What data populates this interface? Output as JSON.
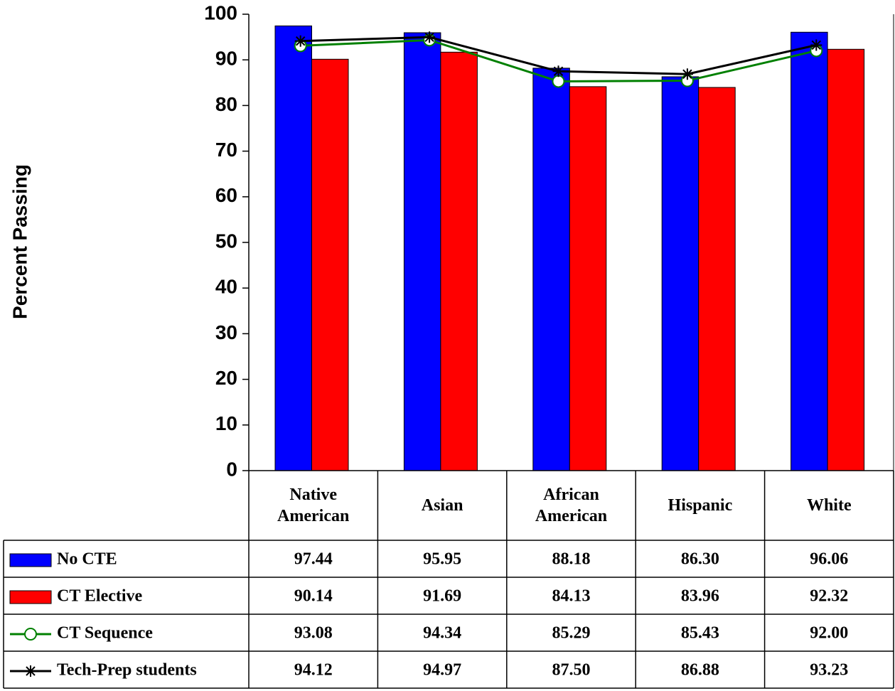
{
  "chart_data": {
    "type": "bar",
    "y_axis_label": "Percent Passing",
    "categories": [
      "Native American",
      "Asian",
      "African American",
      "Hispanic",
      "White"
    ],
    "ylim": [
      0,
      100
    ],
    "yticks": [
      0,
      10,
      20,
      30,
      40,
      50,
      60,
      70,
      80,
      90,
      100
    ],
    "grid": false,
    "series": [
      {
        "name": "No CTE",
        "type": "bar",
        "color": "#0000ff",
        "values": [
          97.44,
          95.95,
          88.18,
          86.3,
          96.06
        ],
        "value_labels": [
          "97.44",
          "95.95",
          "88.18",
          "86.30",
          "96.06"
        ]
      },
      {
        "name": "CT Elective",
        "type": "bar",
        "color": "#ff0000",
        "values": [
          90.14,
          91.69,
          84.13,
          83.96,
          92.32
        ],
        "value_labels": [
          "90.14",
          "91.69",
          "84.13",
          "83.96",
          "92.32"
        ]
      },
      {
        "name": "CT Sequence",
        "type": "line",
        "marker": "circle",
        "color": "#008000",
        "values": [
          93.08,
          94.34,
          85.29,
          85.43,
          92.0
        ],
        "value_labels": [
          "93.08",
          "94.34",
          "85.29",
          "85.43",
          "92.00"
        ]
      },
      {
        "name": "Tech-Prep students",
        "type": "line",
        "marker": "star",
        "color": "#000000",
        "values": [
          94.12,
          94.97,
          87.5,
          86.88,
          93.23
        ],
        "value_labels": [
          "94.12",
          "94.97",
          "87.50",
          "86.88",
          "93.23"
        ]
      }
    ]
  }
}
